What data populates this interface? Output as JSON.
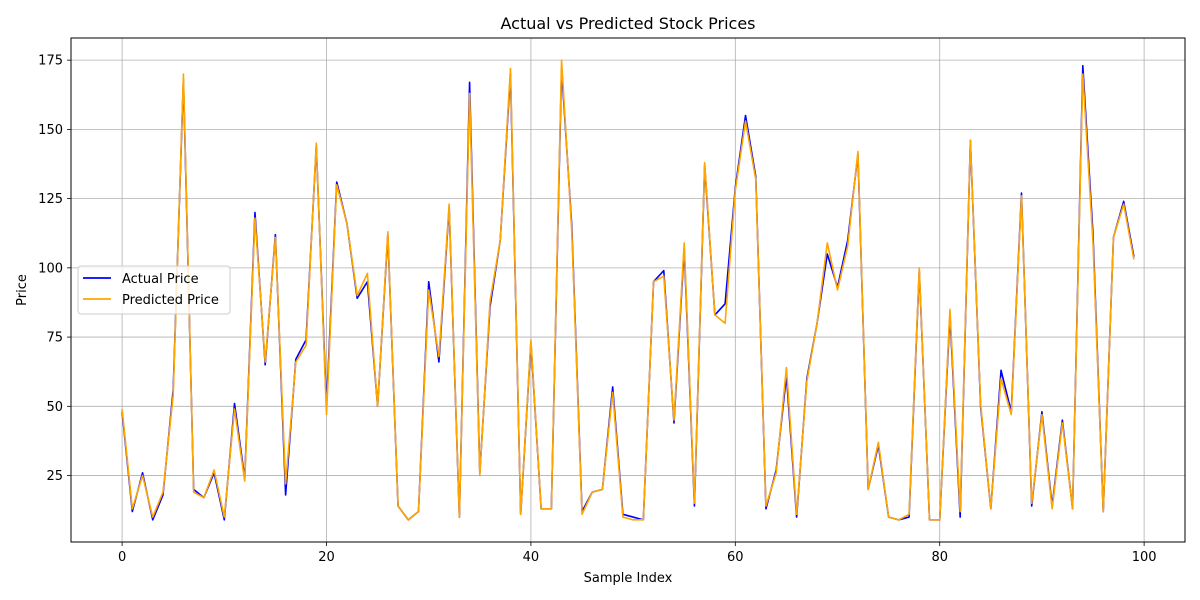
{
  "chart_data": {
    "type": "line",
    "title": "Actual vs Predicted Stock Prices",
    "xlabel": "Sample Index",
    "ylabel": "Price",
    "xlim": [
      -5,
      104
    ],
    "ylim": [
      1,
      183
    ],
    "xticks": [
      0,
      20,
      40,
      60,
      80,
      100
    ],
    "yticks": [
      25,
      50,
      75,
      100,
      125,
      150,
      175
    ],
    "grid": true,
    "legend_position": "center-left",
    "series": [
      {
        "name": "Actual Price",
        "color": "#0000ff",
        "values": [
          48,
          12,
          26,
          9,
          18,
          56,
          168,
          20,
          17,
          26,
          9,
          51,
          24,
          120,
          65,
          112,
          18,
          67,
          74,
          144,
          50,
          131,
          116,
          89,
          95,
          50,
          112,
          14,
          9,
          12,
          95,
          66,
          122,
          10,
          167,
          26,
          86,
          110,
          170,
          11,
          73,
          13,
          13,
          172,
          115,
          12,
          19,
          20,
          57,
          11,
          10,
          9,
          95,
          99,
          44,
          107,
          14,
          137,
          83,
          87,
          129,
          155,
          133,
          13,
          27,
          61,
          10,
          60,
          80,
          105,
          93,
          110,
          141,
          20,
          36,
          10,
          9,
          10,
          99,
          9,
          9,
          83,
          10,
          146,
          50,
          13,
          63,
          48,
          127,
          14,
          48,
          14,
          45,
          13,
          173,
          112,
          12,
          111,
          124,
          104
        ]
      },
      {
        "name": "Predicted Price",
        "color": "#ffa500",
        "values": [
          49,
          13,
          25,
          10,
          19,
          54,
          170,
          19,
          17,
          27,
          10,
          49,
          23,
          118,
          66,
          111,
          22,
          66,
          72,
          145,
          47,
          130,
          116,
          90,
          98,
          50,
          113,
          14,
          9,
          12,
          92,
          68,
          123,
          10,
          163,
          25,
          88,
          110,
          172,
          11,
          74,
          13,
          13,
          175,
          113,
          11,
          19,
          20,
          55,
          10,
          9,
          9,
          95,
          97,
          45,
          109,
          15,
          138,
          83,
          80,
          128,
          153,
          132,
          14,
          26,
          64,
          11,
          59,
          80,
          109,
          92,
          108,
          142,
          20,
          37,
          10,
          9,
          11,
          100,
          9,
          9,
          85,
          12,
          146,
          51,
          13,
          60,
          47,
          126,
          15,
          47,
          13,
          44,
          13,
          170,
          109,
          12,
          111,
          123,
          103
        ]
      }
    ]
  }
}
